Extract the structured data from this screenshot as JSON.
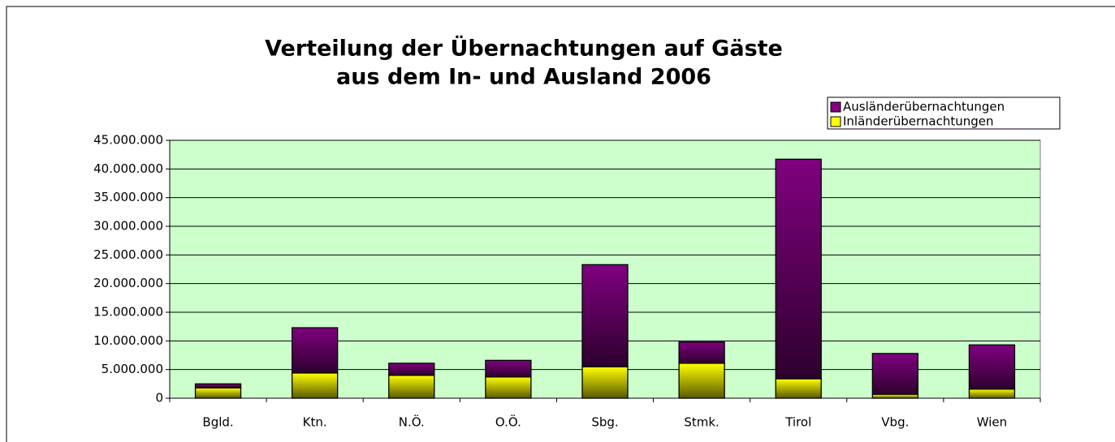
{
  "chart_data": {
    "type": "stacked_bar",
    "title": [
      "Verteilung der Übernachtungen auf Gäste",
      "aus dem In- und Ausland 2006"
    ],
    "categories": [
      "Bgld.",
      "Ktn.",
      "N.Ö.",
      "O.Ö.",
      "Sbg.",
      "Stmk.",
      "Tirol",
      "Vbg.",
      "Wien"
    ],
    "series": [
      {
        "name": "Inländerübernachtungen",
        "color": "#ffff00",
        "values": [
          1800000,
          4400000,
          4000000,
          3700000,
          5500000,
          6100000,
          3400000,
          700000,
          1600000
        ]
      },
      {
        "name": "Ausländerübernachtungen",
        "color": "#800080",
        "values": [
          700000,
          7900000,
          2100000,
          2900000,
          17800000,
          3700000,
          38300000,
          7100000,
          7700000
        ]
      }
    ],
    "ylim": [
      0,
      45000000
    ],
    "yticks": [
      0,
      {
        "value": 5000000,
        "label": "5.000.000"
      },
      {
        "value": 10000000,
        "label": "10.000.000"
      },
      {
        "value": 15000000,
        "label": "15.000.000"
      },
      {
        "value": 20000000,
        "label": "20.000.000"
      },
      {
        "value": 25000000,
        "label": "25.000.000"
      },
      {
        "value": 30000000,
        "label": "30.000.000"
      },
      {
        "value": 35000000,
        "label": "35.000.000"
      },
      {
        "value": 40000000,
        "label": "40.000.000"
      },
      {
        "value": 45000000,
        "label": "45.000.000"
      }
    ],
    "grid": true,
    "plot_background": "#ccffcc",
    "legend": "top-right"
  }
}
